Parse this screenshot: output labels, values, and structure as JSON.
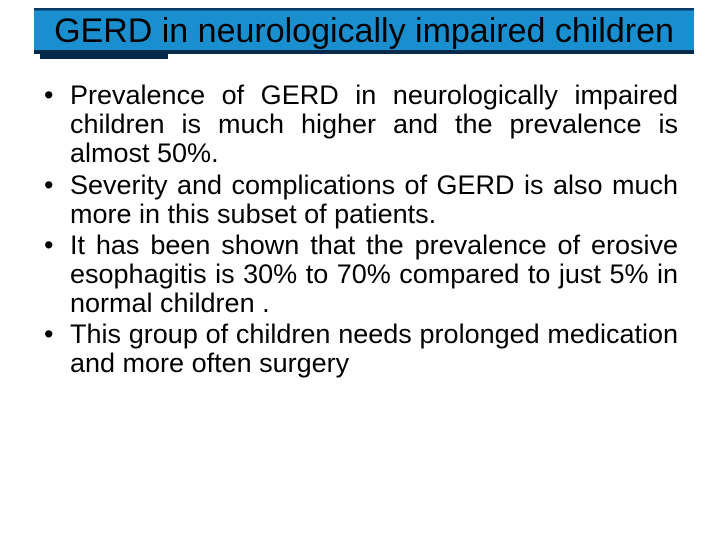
{
  "slide": {
    "title": "GERD in neurologically impaired children",
    "title_bg_top": "#0b3a66",
    "title_bg_main": "#1a8fcf",
    "title_underline_color": "#062a4c",
    "title_fontsize": 34,
    "title_color": "#000000",
    "body_fontsize": 27,
    "body_color": "#000000",
    "body_font": "Comic Sans MS",
    "background_color": "#ffffff",
    "bullets": [
      "Prevalence of GERD in neurologically impaired children is much higher and the prevalence is almost 50%.",
      "Severity and complications of GERD is also much more in this subset of patients.",
      "It has been shown that the prevalence of erosive esophagitis is 30% to 70% compared to just 5% in normal children .",
      "This group of children needs prolonged medication and more often surgery"
    ]
  }
}
